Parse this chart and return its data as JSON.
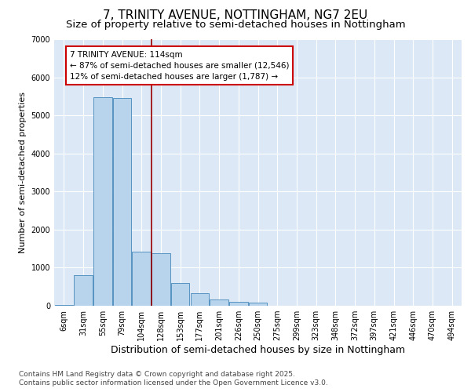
{
  "title1": "7, TRINITY AVENUE, NOTTINGHAM, NG7 2EU",
  "title2": "Size of property relative to semi-detached houses in Nottingham",
  "xlabel": "Distribution of semi-detached houses by size in Nottingham",
  "ylabel": "Number of semi-detached properties",
  "categories": [
    "6sqm",
    "31sqm",
    "55sqm",
    "79sqm",
    "104sqm",
    "128sqm",
    "153sqm",
    "177sqm",
    "201sqm",
    "226sqm",
    "250sqm",
    "275sqm",
    "299sqm",
    "323sqm",
    "348sqm",
    "372sqm",
    "397sqm",
    "421sqm",
    "446sqm",
    "470sqm",
    "494sqm"
  ],
  "values": [
    15,
    800,
    5480,
    5450,
    1420,
    1370,
    600,
    330,
    165,
    105,
    80,
    0,
    0,
    0,
    0,
    0,
    0,
    0,
    0,
    0,
    0
  ],
  "bar_color": "#b8d4ec",
  "bar_edge_color": "#4488bb",
  "red_line_x": 4.5,
  "annotation_text": "7 TRINITY AVENUE: 114sqm\n← 87% of semi-detached houses are smaller (12,546)\n12% of semi-detached houses are larger (1,787) →",
  "annotation_box_color": "white",
  "annotation_box_edge_color": "#cc0000",
  "red_line_color": "#990000",
  "ylim": [
    0,
    7000
  ],
  "yticks": [
    0,
    1000,
    2000,
    3000,
    4000,
    5000,
    6000,
    7000
  ],
  "background_color": "#dce8f5",
  "grid_color": "#c0cfe0",
  "footer1": "Contains HM Land Registry data © Crown copyright and database right 2025.",
  "footer2": "Contains public sector information licensed under the Open Government Licence v3.0.",
  "title1_fontsize": 11,
  "title2_fontsize": 9.5,
  "xlabel_fontsize": 9,
  "ylabel_fontsize": 8,
  "tick_fontsize": 7,
  "annotation_fontsize": 7.5,
  "footer_fontsize": 6.5
}
